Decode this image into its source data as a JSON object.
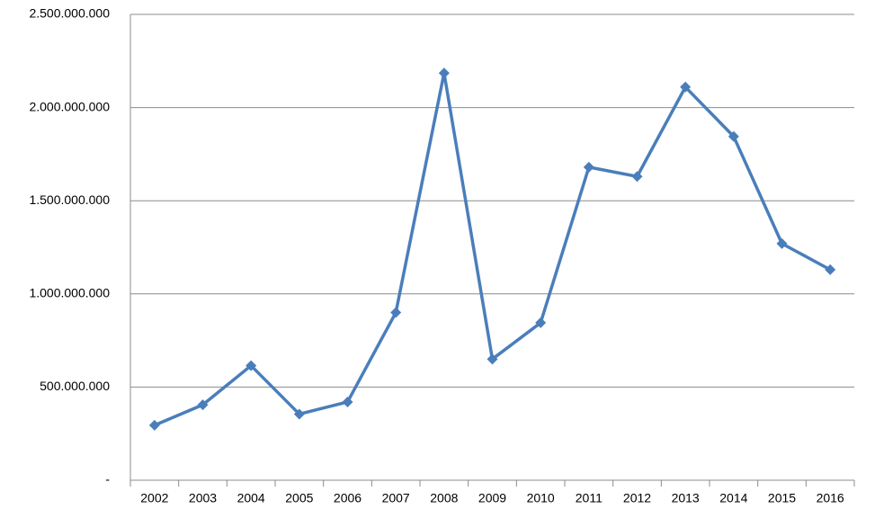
{
  "chart_data": {
    "type": "line",
    "categories": [
      "2002",
      "2003",
      "2004",
      "2005",
      "2006",
      "2007",
      "2008",
      "2009",
      "2010",
      "2011",
      "2012",
      "2013",
      "2014",
      "2015",
      "2016"
    ],
    "series": [
      {
        "color": "#4a7ebb",
        "values": [
          295000000,
          405000000,
          615000000,
          355000000,
          420000000,
          900000000,
          2185000000,
          650000000,
          845000000,
          1680000000,
          1630000000,
          2110000000,
          1845000000,
          1270000000,
          1130000000
        ]
      }
    ],
    "ylim": [
      0,
      2500000000
    ],
    "yticks": [
      {
        "value": 0,
        "label": "-"
      },
      {
        "value": 500000000,
        "label": "500.000.000"
      },
      {
        "value": 1000000000,
        "label": "1.000.000.000"
      },
      {
        "value": 1500000000,
        "label": "1.500.000.000"
      },
      {
        "value": 2000000000,
        "label": "2.000.000.000"
      },
      {
        "value": 2500000000,
        "label": "2.500.000.000"
      }
    ],
    "grid": true
  }
}
